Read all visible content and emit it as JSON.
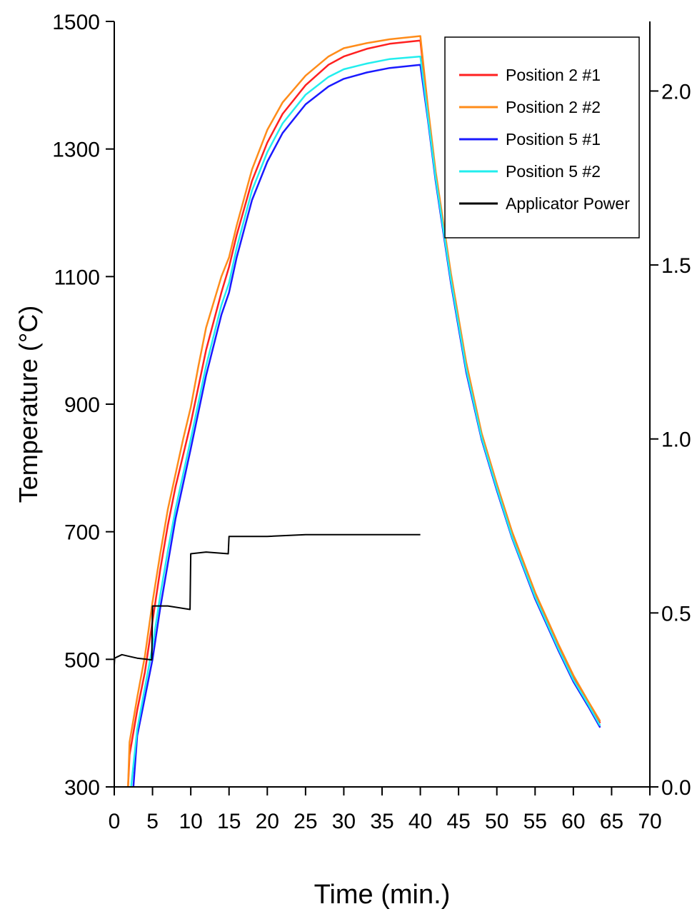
{
  "chart_data": {
    "type": "line",
    "title": "",
    "xlabel": "Time (min.)",
    "ylabel": "Temperature (°C)",
    "y2label": "",
    "xlim": [
      0,
      70
    ],
    "ylim": [
      300,
      1500
    ],
    "y2lim": [
      0,
      2.2
    ],
    "x_ticks": [
      0,
      5,
      10,
      15,
      20,
      25,
      30,
      35,
      40,
      45,
      50,
      55,
      60,
      65,
      70
    ],
    "y_ticks": [
      300,
      500,
      700,
      900,
      1100,
      1300,
      1500
    ],
    "y2_ticks": [
      "0.0",
      "0.5",
      "1.0",
      "1.5",
      "2.0"
    ],
    "grid": false,
    "legend_position": "top-right",
    "series": [
      {
        "name": "Position 2 #1",
        "color": "#ff2020",
        "axis": "left",
        "points": [
          [
            1.8,
            300
          ],
          [
            2,
            350
          ],
          [
            3,
            420
          ],
          [
            4,
            480
          ],
          [
            5,
            560
          ],
          [
            6,
            640
          ],
          [
            7,
            710
          ],
          [
            8,
            770
          ],
          [
            9,
            820
          ],
          [
            10,
            870
          ],
          [
            12,
            985
          ],
          [
            14,
            1075
          ],
          [
            15,
            1115
          ],
          [
            16,
            1165
          ],
          [
            18,
            1250
          ],
          [
            20,
            1310
          ],
          [
            22,
            1355
          ],
          [
            25,
            1400
          ],
          [
            28,
            1432
          ],
          [
            30,
            1445
          ],
          [
            33,
            1457
          ],
          [
            36,
            1465
          ],
          [
            40,
            1470
          ],
          [
            41,
            1360
          ],
          [
            42,
            1260
          ],
          [
            44,
            1100
          ],
          [
            46,
            960
          ],
          [
            48,
            850
          ],
          [
            50,
            770
          ],
          [
            52,
            695
          ],
          [
            55,
            600
          ],
          [
            58,
            520
          ],
          [
            60,
            470
          ],
          [
            62,
            430
          ],
          [
            63.5,
            400
          ]
        ]
      },
      {
        "name": "Position 2 #2",
        "color": "#ff8c1a",
        "axis": "left",
        "points": [
          [
            1.8,
            300
          ],
          [
            2,
            370
          ],
          [
            3,
            440
          ],
          [
            4,
            505
          ],
          [
            5,
            590
          ],
          [
            6,
            665
          ],
          [
            7,
            735
          ],
          [
            8,
            790
          ],
          [
            9,
            845
          ],
          [
            10,
            895
          ],
          [
            11,
            960
          ],
          [
            12,
            1020
          ],
          [
            14,
            1100
          ],
          [
            15,
            1130
          ],
          [
            16,
            1180
          ],
          [
            18,
            1268
          ],
          [
            20,
            1330
          ],
          [
            22,
            1373
          ],
          [
            25,
            1415
          ],
          [
            28,
            1445
          ],
          [
            30,
            1458
          ],
          [
            33,
            1466
          ],
          [
            36,
            1472
          ],
          [
            40,
            1477
          ],
          [
            41,
            1365
          ],
          [
            42,
            1265
          ],
          [
            44,
            1105
          ],
          [
            46,
            965
          ],
          [
            48,
            855
          ],
          [
            50,
            775
          ],
          [
            52,
            700
          ],
          [
            55,
            605
          ],
          [
            58,
            525
          ],
          [
            60,
            475
          ],
          [
            62,
            433
          ],
          [
            63.5,
            403
          ]
        ]
      },
      {
        "name": "Position 5 #1",
        "color": "#1a1aff",
        "axis": "left",
        "points": [
          [
            2.5,
            300
          ],
          [
            3,
            380
          ],
          [
            4,
            440
          ],
          [
            5,
            500
          ],
          [
            6,
            580
          ],
          [
            7,
            650
          ],
          [
            8,
            720
          ],
          [
            9,
            775
          ],
          [
            10,
            830
          ],
          [
            12,
            945
          ],
          [
            14,
            1040
          ],
          [
            15,
            1075
          ],
          [
            16,
            1130
          ],
          [
            18,
            1220
          ],
          [
            20,
            1280
          ],
          [
            22,
            1325
          ],
          [
            25,
            1370
          ],
          [
            28,
            1398
          ],
          [
            30,
            1410
          ],
          [
            33,
            1420
          ],
          [
            36,
            1427
          ],
          [
            40,
            1432
          ],
          [
            41,
            1345
          ],
          [
            42,
            1250
          ],
          [
            44,
            1090
          ],
          [
            46,
            950
          ],
          [
            48,
            845
          ],
          [
            50,
            765
          ],
          [
            52,
            690
          ],
          [
            55,
            595
          ],
          [
            58,
            515
          ],
          [
            60,
            465
          ],
          [
            62,
            425
          ],
          [
            63.5,
            393
          ]
        ]
      },
      {
        "name": "Position 5 #2",
        "color": "#22eeee",
        "axis": "left",
        "points": [
          [
            2.2,
            300
          ],
          [
            3,
            390
          ],
          [
            4,
            455
          ],
          [
            5,
            520
          ],
          [
            6,
            600
          ],
          [
            7,
            670
          ],
          [
            8,
            735
          ],
          [
            9,
            790
          ],
          [
            10,
            845
          ],
          [
            12,
            960
          ],
          [
            14,
            1055
          ],
          [
            15,
            1090
          ],
          [
            16,
            1145
          ],
          [
            18,
            1235
          ],
          [
            20,
            1295
          ],
          [
            22,
            1340
          ],
          [
            25,
            1385
          ],
          [
            28,
            1413
          ],
          [
            30,
            1425
          ],
          [
            33,
            1434
          ],
          [
            36,
            1441
          ],
          [
            40,
            1445
          ],
          [
            41,
            1350
          ],
          [
            42,
            1255
          ],
          [
            44,
            1095
          ],
          [
            46,
            955
          ],
          [
            48,
            848
          ],
          [
            50,
            768
          ],
          [
            52,
            692
          ],
          [
            55,
            598
          ],
          [
            58,
            518
          ],
          [
            60,
            468
          ],
          [
            62,
            428
          ],
          [
            63.5,
            396
          ]
        ]
      },
      {
        "name": "Applicator Power",
        "color": "#000000",
        "axis": "right",
        "points": [
          [
            0,
            0.35
          ],
          [
            0.05,
            0.37
          ],
          [
            1,
            0.38
          ],
          [
            2,
            0.375
          ],
          [
            3,
            0.37
          ],
          [
            4.9,
            0.365
          ],
          [
            5,
            0.52
          ],
          [
            7,
            0.52
          ],
          [
            9.9,
            0.51
          ],
          [
            10,
            0.67
          ],
          [
            12,
            0.675
          ],
          [
            14.9,
            0.67
          ],
          [
            15,
            0.72
          ],
          [
            20,
            0.72
          ],
          [
            25,
            0.725
          ],
          [
            30,
            0.725
          ],
          [
            35,
            0.725
          ],
          [
            40,
            0.725
          ]
        ]
      }
    ]
  }
}
